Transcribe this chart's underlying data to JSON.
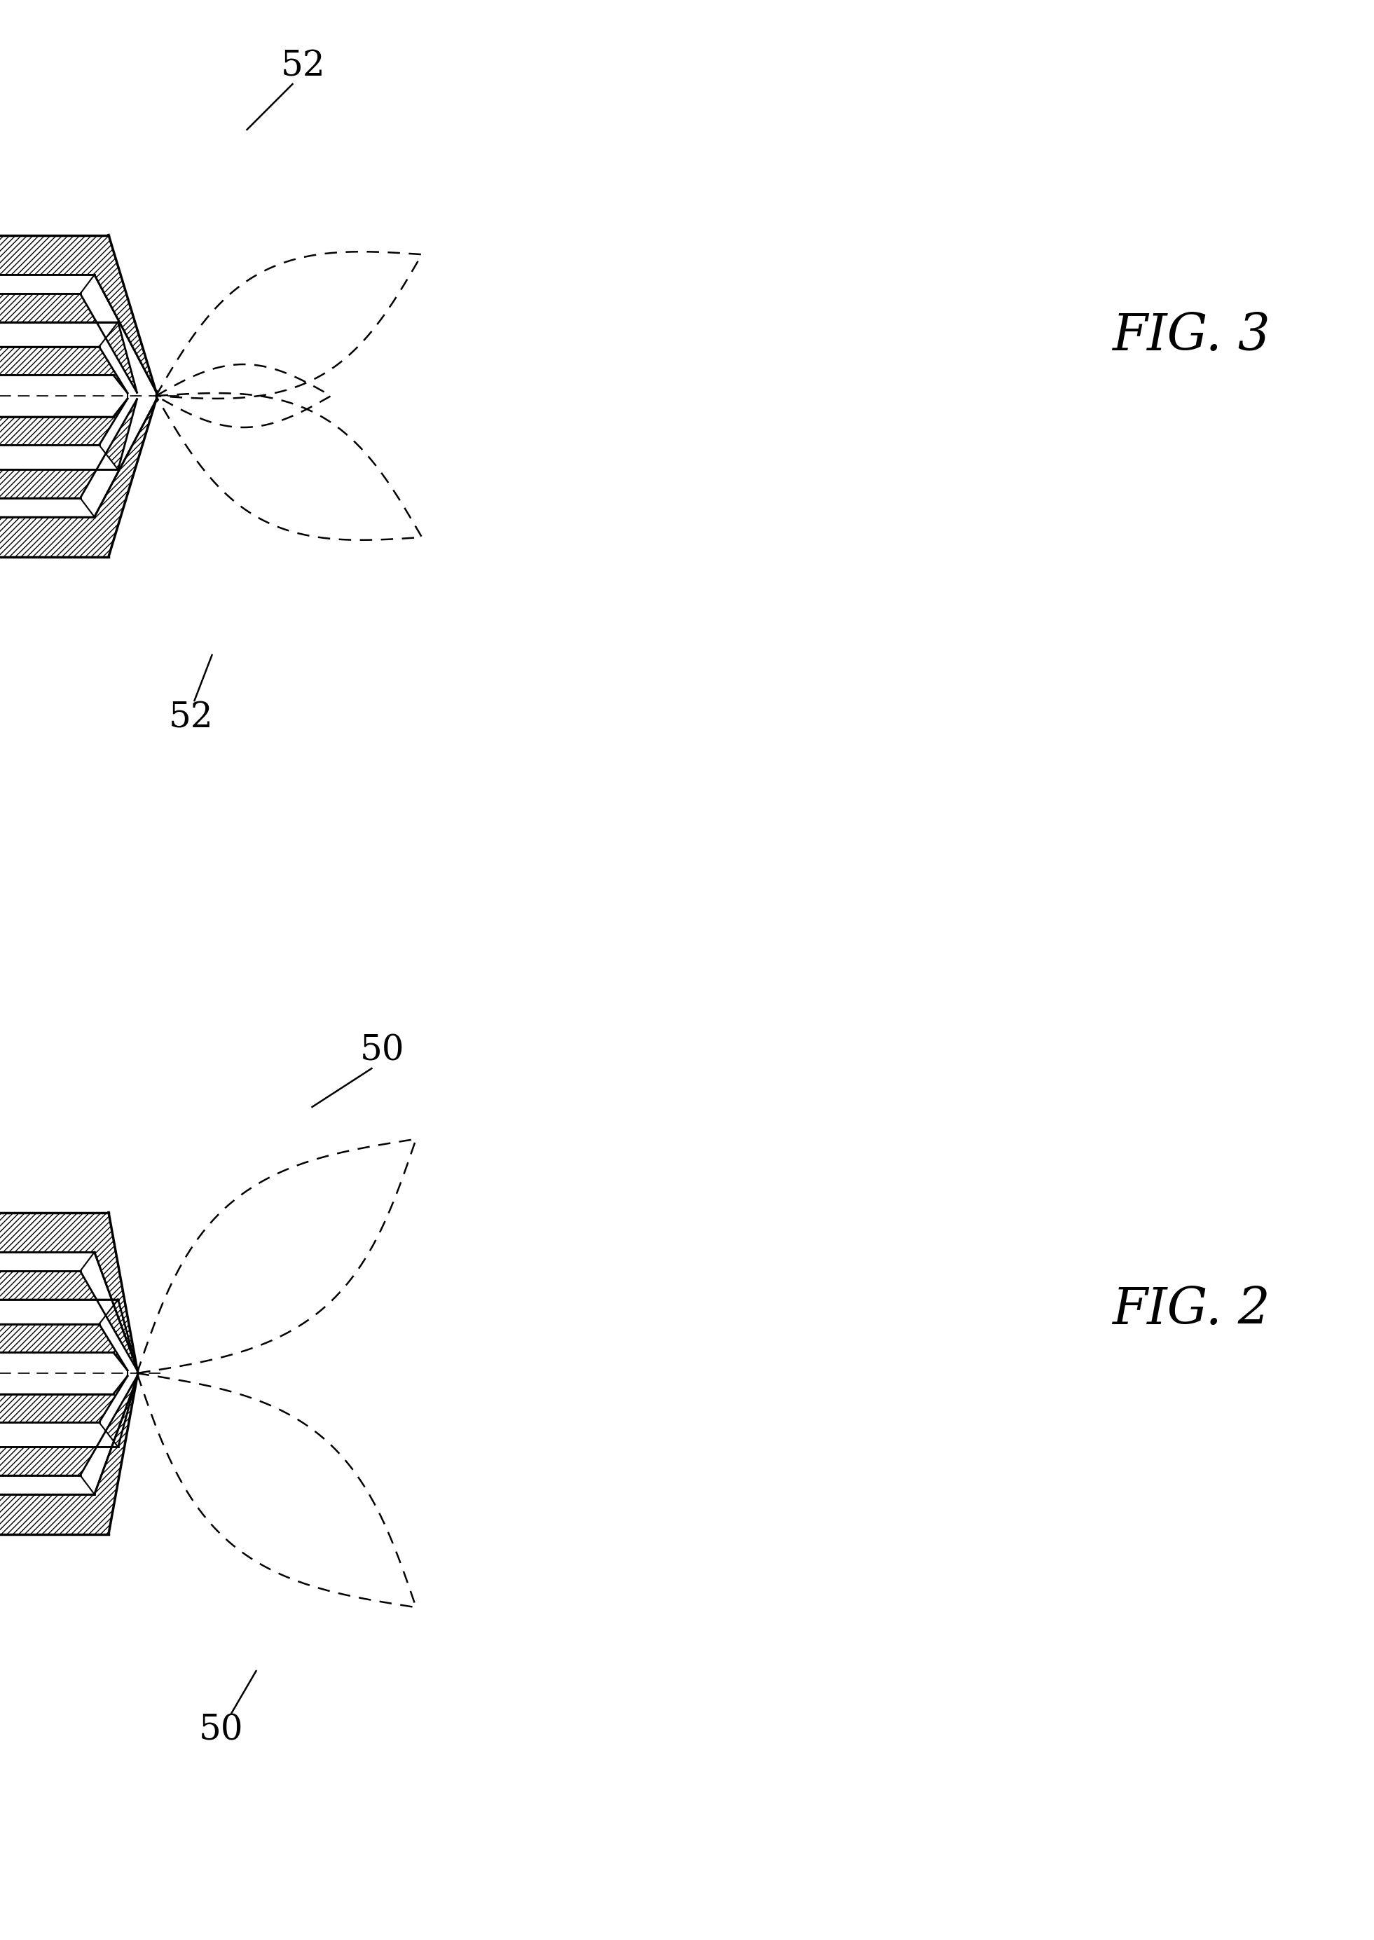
{
  "fig_width": 19.61,
  "fig_height": 27.69,
  "bg_color": "#ffffff",
  "fig3_label": "FIG. 3",
  "fig2_label": "FIG. 2",
  "label_52_top": "52",
  "label_52_bot": "52",
  "label_50_top": "50",
  "label_50_bot": "50"
}
